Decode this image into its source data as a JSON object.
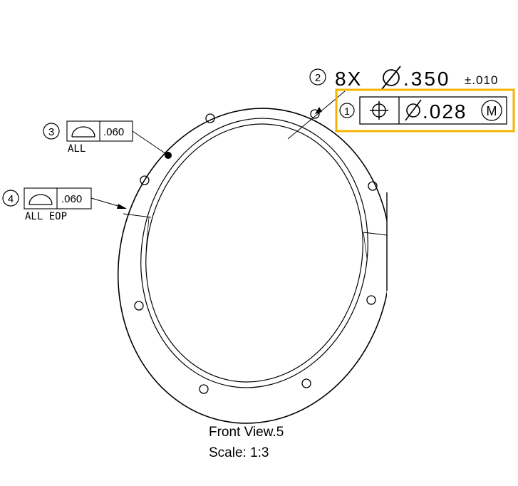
{
  "callouts": {
    "c1": {
      "balloon": "1",
      "tolerance": ".028",
      "modifier": "M",
      "highlight_color": "#f5b400"
    },
    "c2": {
      "balloon": "2",
      "count": "8X",
      "diameter": ".350",
      "plus_minus": "±.010"
    },
    "c3": {
      "balloon": "3",
      "value": ".060",
      "note": "ALL"
    },
    "c4": {
      "balloon": "4",
      "value": ".060",
      "note": "ALL EOP"
    }
  },
  "caption": {
    "view": "Front View.5",
    "scale": "Scale:  1:3"
  }
}
